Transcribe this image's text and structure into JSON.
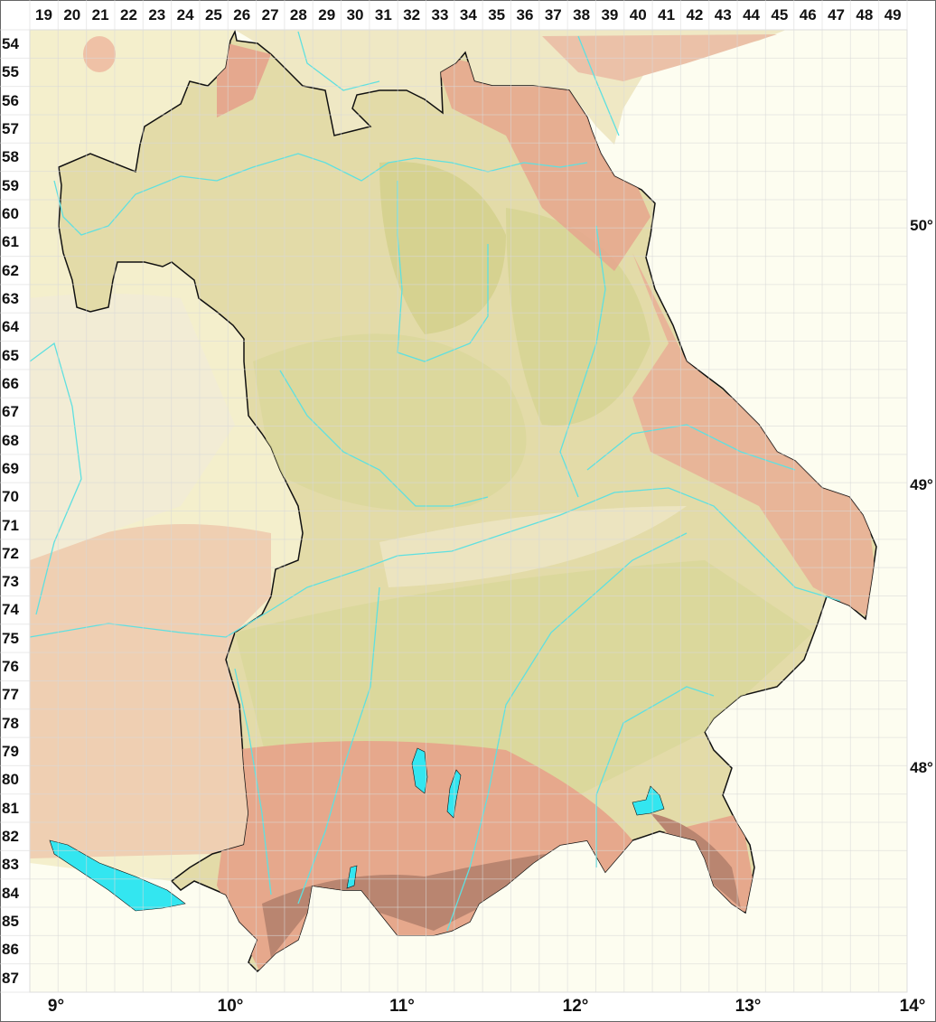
{
  "map": {
    "grid_columns": [
      "19",
      "20",
      "21",
      "22",
      "23",
      "24",
      "25",
      "26",
      "27",
      "28",
      "29",
      "30",
      "31",
      "32",
      "33",
      "34",
      "35",
      "36",
      "37",
      "38",
      "39",
      "40",
      "41",
      "42",
      "43",
      "44",
      "45",
      "46",
      "47",
      "48",
      "49"
    ],
    "grid_rows": [
      "54",
      "55",
      "56",
      "57",
      "58",
      "59",
      "60",
      "61",
      "62",
      "63",
      "64",
      "65",
      "66",
      "67",
      "68",
      "69",
      "70",
      "71",
      "72",
      "73",
      "74",
      "75",
      "76",
      "77",
      "78",
      "79",
      "80",
      "81",
      "82",
      "83",
      "84",
      "85",
      "86",
      "87"
    ],
    "latitude_labels": [
      "50°",
      "49°",
      "48°"
    ],
    "longitude_labels": [
      "9°",
      "10°",
      "11°",
      "12°",
      "13°",
      "14°"
    ],
    "colors": {
      "background": "#fdfdf0",
      "lowland": "#ece4c0",
      "hill": "#d9d79a",
      "upland": "#e8a98e",
      "alps": "#c98a72",
      "outside": "#f5f0cf",
      "water": "#33e6f0",
      "border": "#111111",
      "grid": "#e2e2e2"
    }
  }
}
